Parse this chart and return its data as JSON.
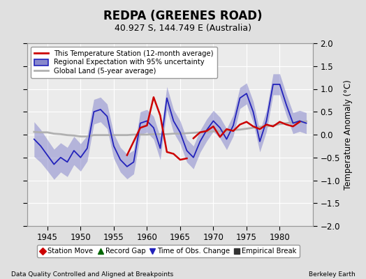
{
  "title": "REDPA (GREENES ROAD)",
  "subtitle": "40.927 S, 144.749 E (Australia)",
  "ylabel": "Temperature Anomaly (°C)",
  "xlabel_left": "Data Quality Controlled and Aligned at Breakpoints",
  "xlabel_right": "Berkeley Earth",
  "xlim": [
    1942,
    1985
  ],
  "ylim": [
    -2,
    2
  ],
  "yticks": [
    -2,
    -1.5,
    -1,
    -0.5,
    0,
    0.5,
    1,
    1.5,
    2
  ],
  "xticks": [
    1945,
    1950,
    1955,
    1960,
    1965,
    1970,
    1975,
    1980
  ],
  "background_color": "#e0e0e0",
  "plot_background": "#ebebeb",
  "grid_color": "#ffffff",
  "regional_color": "#2222bb",
  "regional_fill_color": "#8888cc",
  "station_color": "#cc0000",
  "global_color": "#b0b0b0",
  "legend_items": [
    "This Temperature Station (12-month average)",
    "Regional Expectation with 95% uncertainty",
    "Global Land (5-year average)"
  ],
  "bottom_legend": [
    {
      "marker": "D",
      "color": "#cc0000",
      "label": "Station Move"
    },
    {
      "marker": "^",
      "color": "#006600",
      "label": "Record Gap"
    },
    {
      "marker": "v",
      "color": "#2222bb",
      "label": "Time of Obs. Change"
    },
    {
      "marker": "s",
      "color": "#333333",
      "label": "Empirical Break"
    }
  ],
  "regional_years": [
    1943,
    1944,
    1945,
    1946,
    1947,
    1948,
    1949,
    1950,
    1951,
    1952,
    1953,
    1954,
    1955,
    1956,
    1957,
    1958,
    1959,
    1960,
    1961,
    1962,
    1963,
    1964,
    1965,
    1966,
    1967,
    1968,
    1969,
    1970,
    1971,
    1972,
    1973,
    1974,
    1975,
    1976,
    1977,
    1978,
    1979,
    1980,
    1981,
    1982,
    1983,
    1984
  ],
  "regional_vals": [
    -0.1,
    -0.25,
    -0.45,
    -0.65,
    -0.5,
    -0.6,
    -0.35,
    -0.5,
    -0.3,
    0.5,
    0.55,
    0.4,
    -0.25,
    -0.55,
    -0.7,
    -0.6,
    0.25,
    0.3,
    0.15,
    -0.3,
    0.8,
    0.3,
    0.05,
    -0.35,
    -0.5,
    -0.15,
    0.1,
    0.3,
    0.15,
    -0.1,
    0.2,
    0.8,
    0.9,
    0.5,
    -0.15,
    0.3,
    1.1,
    1.1,
    0.65,
    0.25,
    0.3,
    0.25
  ],
  "regional_unc": [
    0.38,
    0.36,
    0.34,
    0.33,
    0.32,
    0.32,
    0.31,
    0.3,
    0.28,
    0.27,
    0.27,
    0.27,
    0.27,
    0.27,
    0.27,
    0.26,
    0.25,
    0.25,
    0.25,
    0.25,
    0.25,
    0.25,
    0.25,
    0.25,
    0.25,
    0.24,
    0.24,
    0.23,
    0.23,
    0.23,
    0.23,
    0.23,
    0.23,
    0.23,
    0.23,
    0.23,
    0.23,
    0.23,
    0.23,
    0.23,
    0.23,
    0.23
  ],
  "station_years_1": [
    1957,
    1958,
    1959,
    1960,
    1961,
    1962,
    1963,
    1964,
    1965,
    1966
  ],
  "station_vals_1": [
    -0.45,
    -0.15,
    0.15,
    0.2,
    0.82,
    0.42,
    -0.38,
    -0.42,
    -0.55,
    -0.52
  ],
  "station_years_2": [
    1967,
    1968,
    1969,
    1970,
    1971,
    1972,
    1973,
    1974,
    1975,
    1976,
    1977,
    1978,
    1979,
    1980,
    1981,
    1982,
    1983
  ],
  "station_vals_2": [
    -0.08,
    0.05,
    0.08,
    0.18,
    -0.05,
    0.12,
    0.08,
    0.22,
    0.28,
    0.18,
    0.12,
    0.22,
    0.18,
    0.28,
    0.22,
    0.18,
    0.28
  ],
  "global_years": [
    1943,
    1944,
    1945,
    1946,
    1947,
    1948,
    1949,
    1950,
    1951,
    1952,
    1953,
    1954,
    1955,
    1956,
    1957,
    1958,
    1959,
    1960,
    1961,
    1962,
    1963,
    1964,
    1965,
    1966,
    1967,
    1968,
    1969,
    1970,
    1971,
    1972,
    1973,
    1974,
    1975,
    1976,
    1977,
    1978,
    1979,
    1980,
    1981,
    1982,
    1983,
    1984
  ],
  "global_vals": [
    0.06,
    0.05,
    0.05,
    0.02,
    0.01,
    -0.01,
    -0.02,
    -0.04,
    -0.04,
    -0.01,
    -0.01,
    -0.01,
    -0.01,
    -0.01,
    -0.01,
    0.0,
    0.0,
    0.0,
    0.01,
    0.01,
    0.01,
    0.02,
    0.02,
    0.03,
    0.04,
    0.05,
    0.06,
    0.07,
    0.08,
    0.09,
    0.1,
    0.11,
    0.13,
    0.15,
    0.17,
    0.18,
    0.2,
    0.23,
    0.25,
    0.27,
    0.27,
    0.29
  ]
}
